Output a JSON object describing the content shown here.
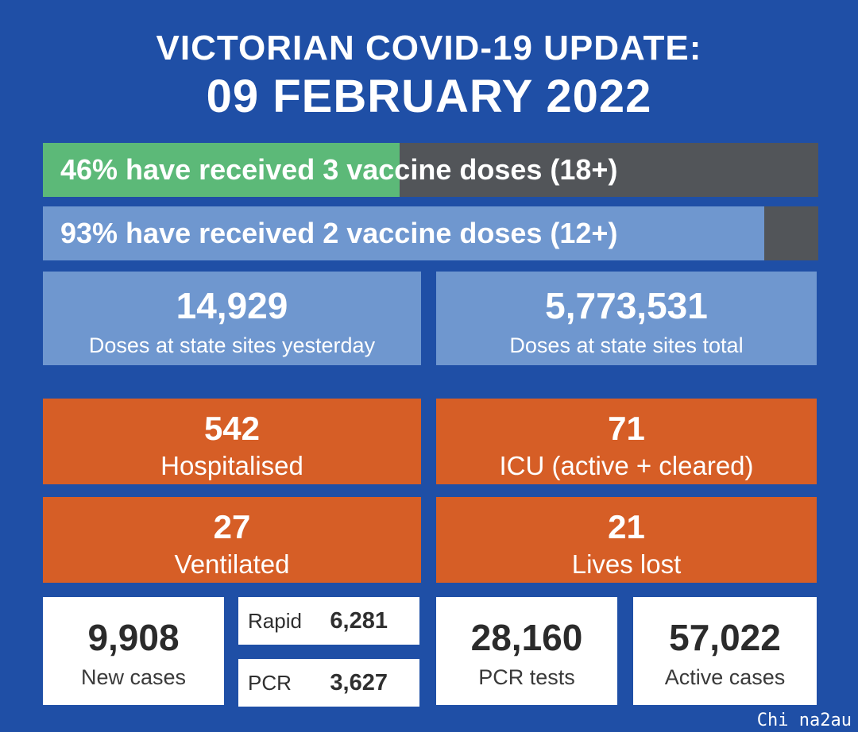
{
  "header": {
    "title_line1": "VICTORIAN COVID-19 UPDATE:",
    "title_line2": "09 FEBRUARY 2022"
  },
  "vaccination": {
    "three_doses": {
      "label": "46% have received 3 vaccine doses (18+)",
      "fraction": 0.46
    },
    "two_doses": {
      "label": "93% have received 2 vaccine doses (12+)",
      "fraction": 0.93
    }
  },
  "doses": {
    "yesterday": {
      "value": "14,929",
      "label": "Doses at state sites yesterday"
    },
    "total": {
      "value": "5,773,531",
      "label": "Doses at state sites total"
    }
  },
  "hospital": {
    "hospitalised": {
      "value": "542",
      "label": "Hospitalised"
    },
    "icu": {
      "value": "71",
      "label": "ICU (active + cleared)"
    },
    "ventilated": {
      "value": "27",
      "label": "Ventilated"
    },
    "lives_lost": {
      "value": "21",
      "label": "Lives lost"
    }
  },
  "cases": {
    "new_cases": {
      "value": "9,908",
      "label": "New cases"
    },
    "rapid": {
      "label": "Rapid",
      "value": "6,281"
    },
    "pcr": {
      "label": "PCR",
      "value": "3,627"
    },
    "pcr_tests": {
      "value": "28,160",
      "label": "PCR tests"
    },
    "active_cases": {
      "value": "57,022",
      "label": "Active cases"
    }
  },
  "watermark": "Chi na2au",
  "colors": {
    "background": "#1f4fa6",
    "green": "#5cb978",
    "light_blue": "#6f97cf",
    "grey": "#525559",
    "orange": "#d65e26"
  }
}
